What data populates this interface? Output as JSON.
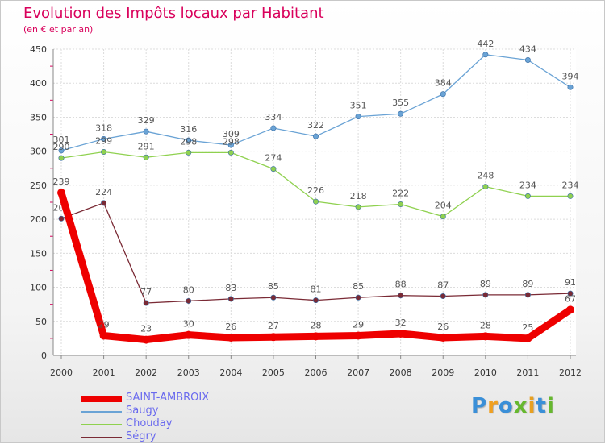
{
  "title": "Evolution des Impôts locaux par Habitant",
  "subtitle": "(en € et par an)",
  "logo": {
    "text": "Proxiti",
    "colors": [
      "#3a8fd8",
      "#f0a020",
      "#3a8fd8",
      "#66b82e",
      "#e8a020",
      "#3a8fd8",
      "#66b82e"
    ]
  },
  "chart_data": {
    "type": "line",
    "title": "Evolution des Impôts locaux par Habitant",
    "subtitle": "(en € et par an)",
    "xlabel": "",
    "ylabel": "",
    "categories": [
      "2000",
      "2001",
      "2002",
      "2003",
      "2004",
      "2005",
      "2006",
      "2007",
      "2008",
      "2009",
      "2010",
      "2011",
      "2012"
    ],
    "ylim": [
      0,
      450
    ],
    "yticks": [
      0,
      50,
      100,
      150,
      200,
      250,
      300,
      350,
      400,
      450
    ],
    "grid": true,
    "legend_position": "bottom-left",
    "series": [
      {
        "name": "SAINT-AMBROIX",
        "color": "#ee0000",
        "values": [
          239,
          29,
          23,
          30,
          26,
          27,
          28,
          29,
          32,
          26,
          28,
          25,
          67
        ]
      },
      {
        "name": "Saugy",
        "color": "#6aa3d5",
        "values": [
          301,
          318,
          329,
          316,
          309,
          334,
          322,
          351,
          355,
          384,
          442,
          434,
          394
        ]
      },
      {
        "name": "Chouday",
        "color": "#8fd14f",
        "values": [
          290,
          299,
          291,
          298,
          298,
          274,
          226,
          218,
          222,
          204,
          248,
          234,
          234
        ]
      },
      {
        "name": "Ségry",
        "color": "#7a2a35",
        "values": [
          201,
          224,
          77,
          80,
          83,
          85,
          81,
          85,
          88,
          87,
          89,
          89,
          91
        ]
      }
    ]
  }
}
